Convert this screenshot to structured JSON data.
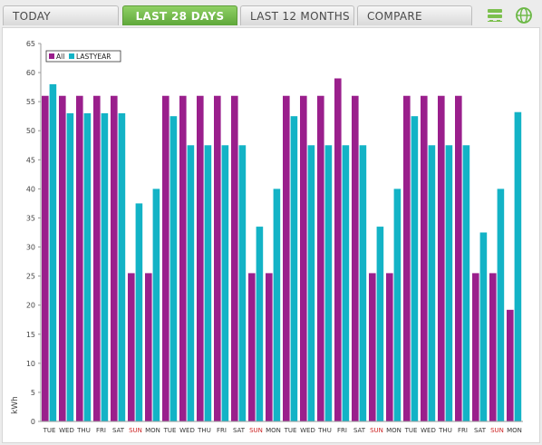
{
  "tabs": [
    {
      "label": "TODAY",
      "active": false
    },
    {
      "label": "LAST 28 DAYS",
      "active": true
    },
    {
      "label": "LAST 12 MONTHS",
      "active": false
    },
    {
      "label": "COMPARE",
      "active": false
    }
  ],
  "icons": {
    "settings": "server-settings-icon",
    "globe": "globe-icon"
  },
  "colors": {
    "all": "#9a1f8c",
    "lastyear": "#13b3c6",
    "weekend": "#cc2222",
    "active_tab": "#6bb845"
  },
  "chart_data": {
    "type": "bar",
    "ylabel": "kWh",
    "ylim": [
      0,
      65
    ],
    "yticks": [
      0,
      5,
      10,
      15,
      20,
      25,
      30,
      35,
      40,
      45,
      50,
      55,
      60,
      65
    ],
    "grid": false,
    "legend": "top-left",
    "categories": [
      "TUE",
      "WED",
      "THU",
      "FRI",
      "SAT",
      "SUN",
      "MON",
      "TUE",
      "WED",
      "THU",
      "FRI",
      "SAT",
      "SUN",
      "MON",
      "TUE",
      "WED",
      "THU",
      "FRI",
      "SAT",
      "SUN",
      "MON",
      "TUE",
      "WED",
      "THU",
      "FRI",
      "SAT",
      "SUN",
      "MON"
    ],
    "weekend_labels": [
      "SUN"
    ],
    "series": [
      {
        "name": "All",
        "values": [
          56,
          56,
          56,
          56,
          56,
          25.5,
          25.5,
          56,
          56,
          56,
          56,
          56,
          25.5,
          25.5,
          56,
          56,
          56,
          59,
          56,
          25.5,
          25.5,
          56,
          56,
          56,
          56,
          25.5,
          25.5,
          19.2
        ]
      },
      {
        "name": "LASTYEAR",
        "values": [
          58,
          53,
          53,
          53,
          53,
          37.5,
          40,
          52.5,
          47.5,
          47.5,
          47.5,
          47.5,
          33.5,
          40,
          52.5,
          47.5,
          47.5,
          47.5,
          47.5,
          33.5,
          40,
          52.5,
          47.5,
          47.5,
          47.5,
          32.5,
          40,
          53.2
        ]
      }
    ]
  }
}
